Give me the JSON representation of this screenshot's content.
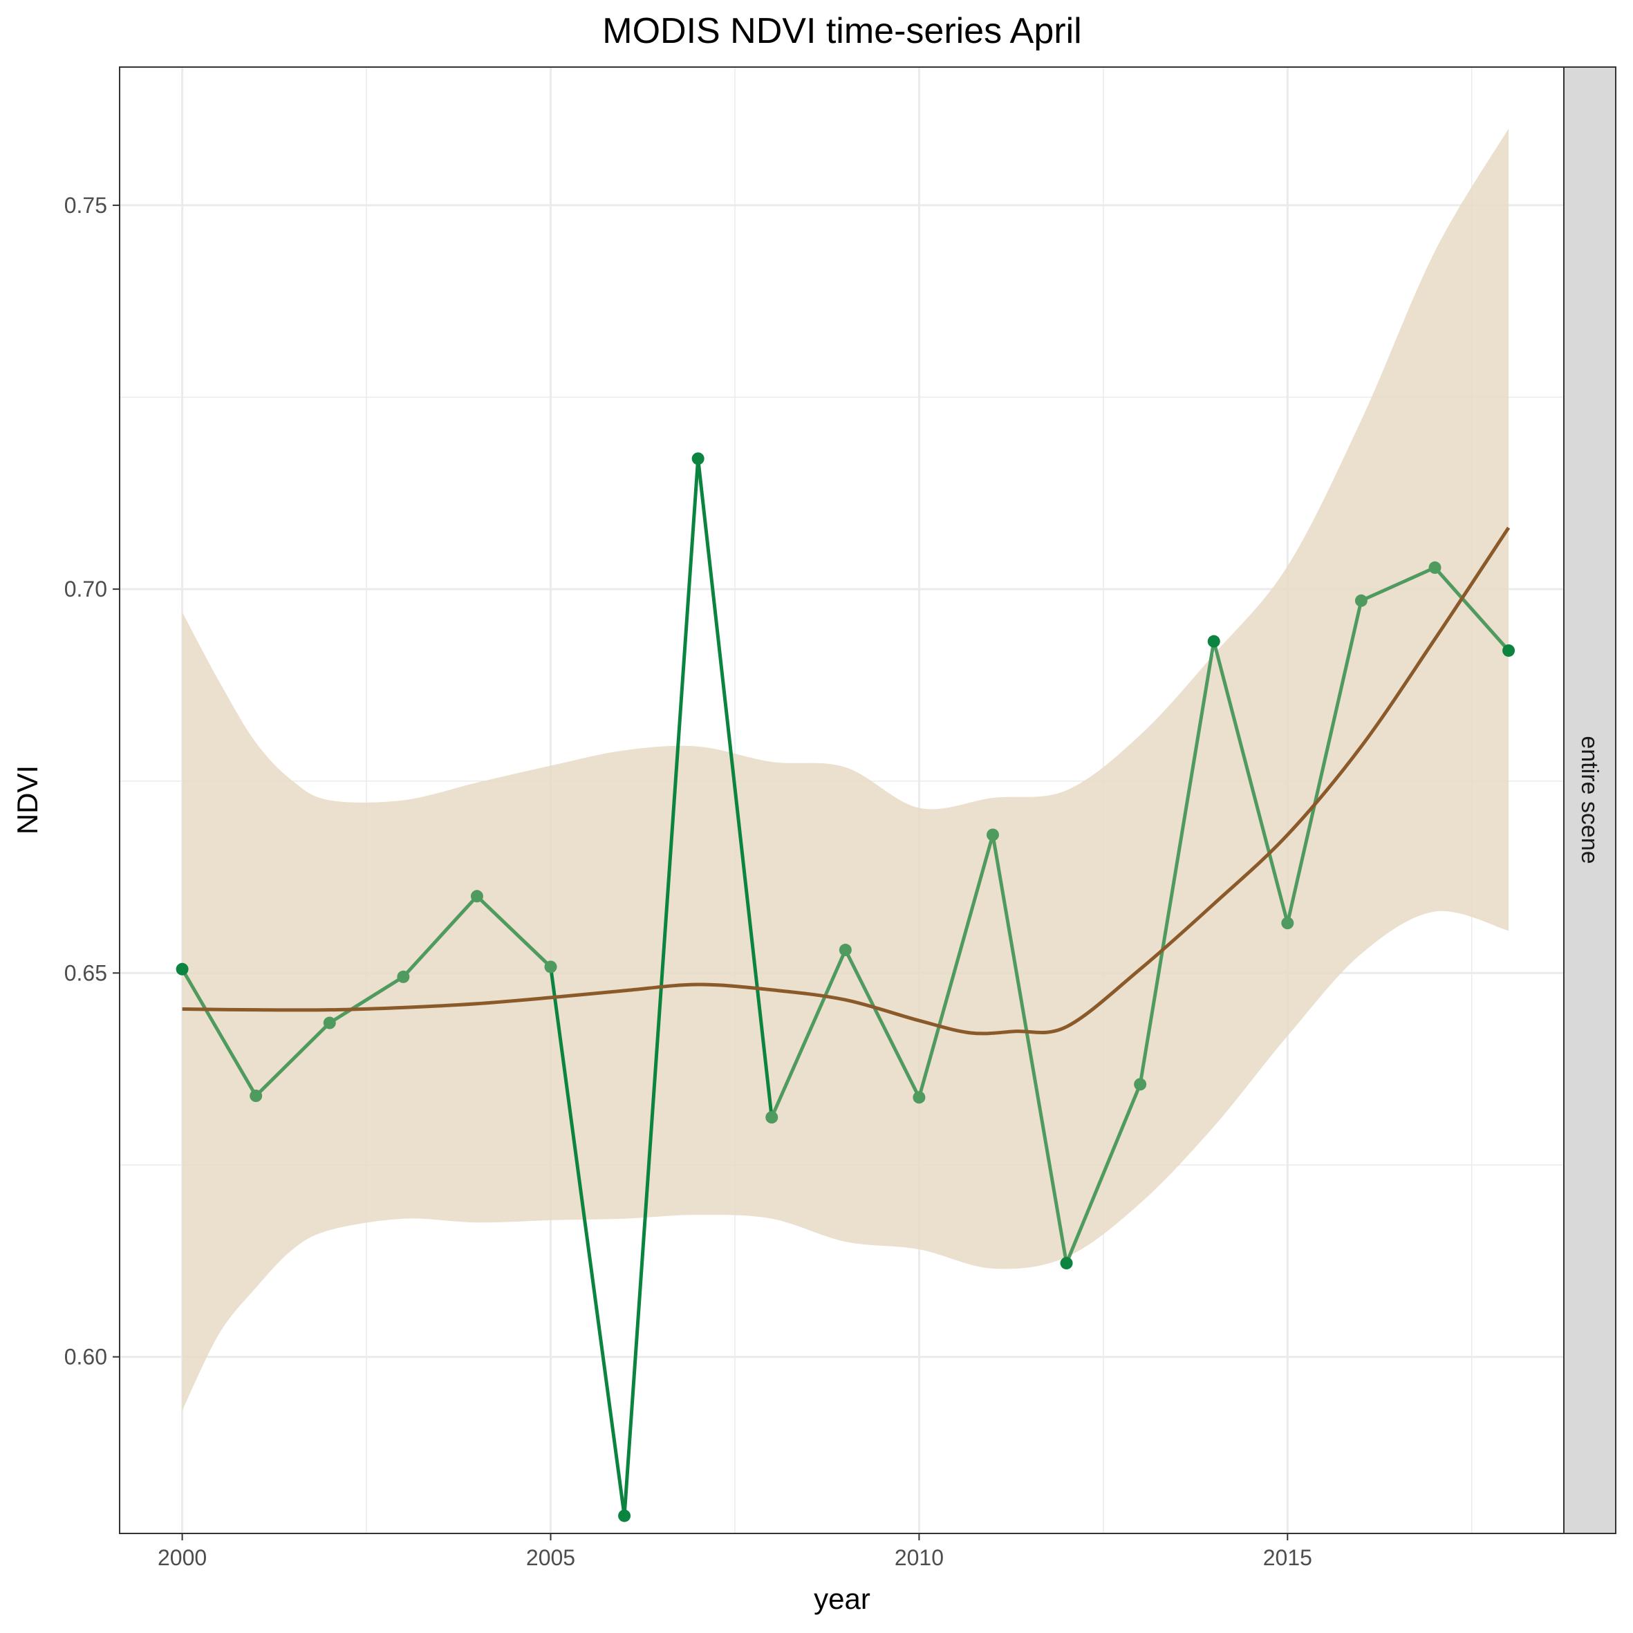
{
  "chart_data": {
    "type": "line",
    "title": "MODIS NDVI time-series April",
    "xlabel": "year",
    "ylabel": "NDVI",
    "facet_label": "entire scene",
    "xlim": [
      1999.15,
      2018.75
    ],
    "ylim": [
      0.577,
      0.768
    ],
    "x_ticks": [
      2000,
      2005,
      2010,
      2015
    ],
    "y_ticks": [
      0.6,
      0.65,
      0.7,
      0.75
    ],
    "y_tick_labels": [
      "0.60",
      "0.65",
      "0.70",
      "0.75"
    ],
    "x_tick_labels": [
      "2000",
      "2005",
      "2010",
      "2015"
    ],
    "grid": true,
    "colors": {
      "series": "#4f9a5f",
      "series_extreme": "#0b8440",
      "smooth": "#8b5a2b",
      "ribbon": "#e8d9c4",
      "grid": "#ebebeb",
      "strip": "#d9d9d9"
    },
    "series": [
      {
        "x": [
          2000,
          2001,
          2002,
          2003,
          2004,
          2005,
          2006,
          2007,
          2008,
          2009,
          2010,
          2011,
          2012,
          2013,
          2014,
          2015,
          2016,
          2017,
          2018
        ],
        "values": [
          0.6505,
          0.634,
          0.6435,
          0.6495,
          0.66,
          0.6508,
          0.5793,
          0.717,
          0.6312,
          0.653,
          0.6338,
          0.668,
          0.6122,
          0.6355,
          0.6932,
          0.6565,
          0.6985,
          0.7028,
          0.692
        ]
      }
    ],
    "smooth": {
      "x": [
        2000,
        2001,
        2002,
        2003,
        2004,
        2005,
        2006,
        2007,
        2008,
        2009,
        2010,
        2010.7,
        2011.3,
        2012,
        2013,
        2014,
        2015,
        2016,
        2017,
        2018
      ],
      "y": [
        0.6453,
        0.6452,
        0.6452,
        0.6455,
        0.646,
        0.6468,
        0.6477,
        0.6485,
        0.6478,
        0.6465,
        0.6438,
        0.6422,
        0.6424,
        0.643,
        0.6505,
        0.659,
        0.668,
        0.6795,
        0.6935,
        0.708
      ]
    },
    "ribbon": {
      "x": [
        2000,
        2000.5,
        2001,
        2001.5,
        2002,
        2003,
        2004,
        2005,
        2006,
        2007,
        2008,
        2009,
        2010,
        2011,
        2012,
        2013,
        2014,
        2015,
        2016,
        2017,
        2018
      ],
      "upper": [
        0.697,
        0.688,
        0.68,
        0.675,
        0.6725,
        0.6725,
        0.6748,
        0.677,
        0.679,
        0.6795,
        0.6775,
        0.6768,
        0.6715,
        0.6728,
        0.6738,
        0.681,
        0.6915,
        0.703,
        0.722,
        0.744,
        0.76
      ],
      "lower": [
        0.593,
        0.603,
        0.609,
        0.614,
        0.6165,
        0.618,
        0.6175,
        0.6178,
        0.618,
        0.6185,
        0.618,
        0.615,
        0.614,
        0.6115,
        0.613,
        0.62,
        0.63,
        0.6418,
        0.6525,
        0.658,
        0.6555
      ]
    }
  }
}
